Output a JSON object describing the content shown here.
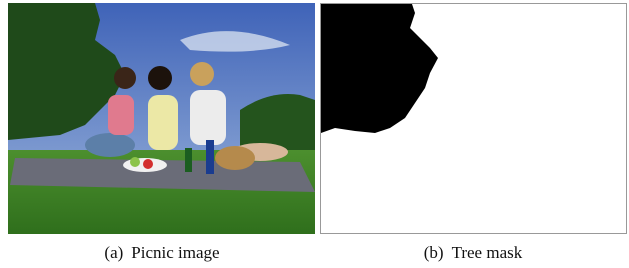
{
  "figure": {
    "panels": [
      {
        "label": "(a)",
        "caption": "Picnic image"
      },
      {
        "label": "(b)",
        "caption": "Tree mask"
      }
    ]
  }
}
